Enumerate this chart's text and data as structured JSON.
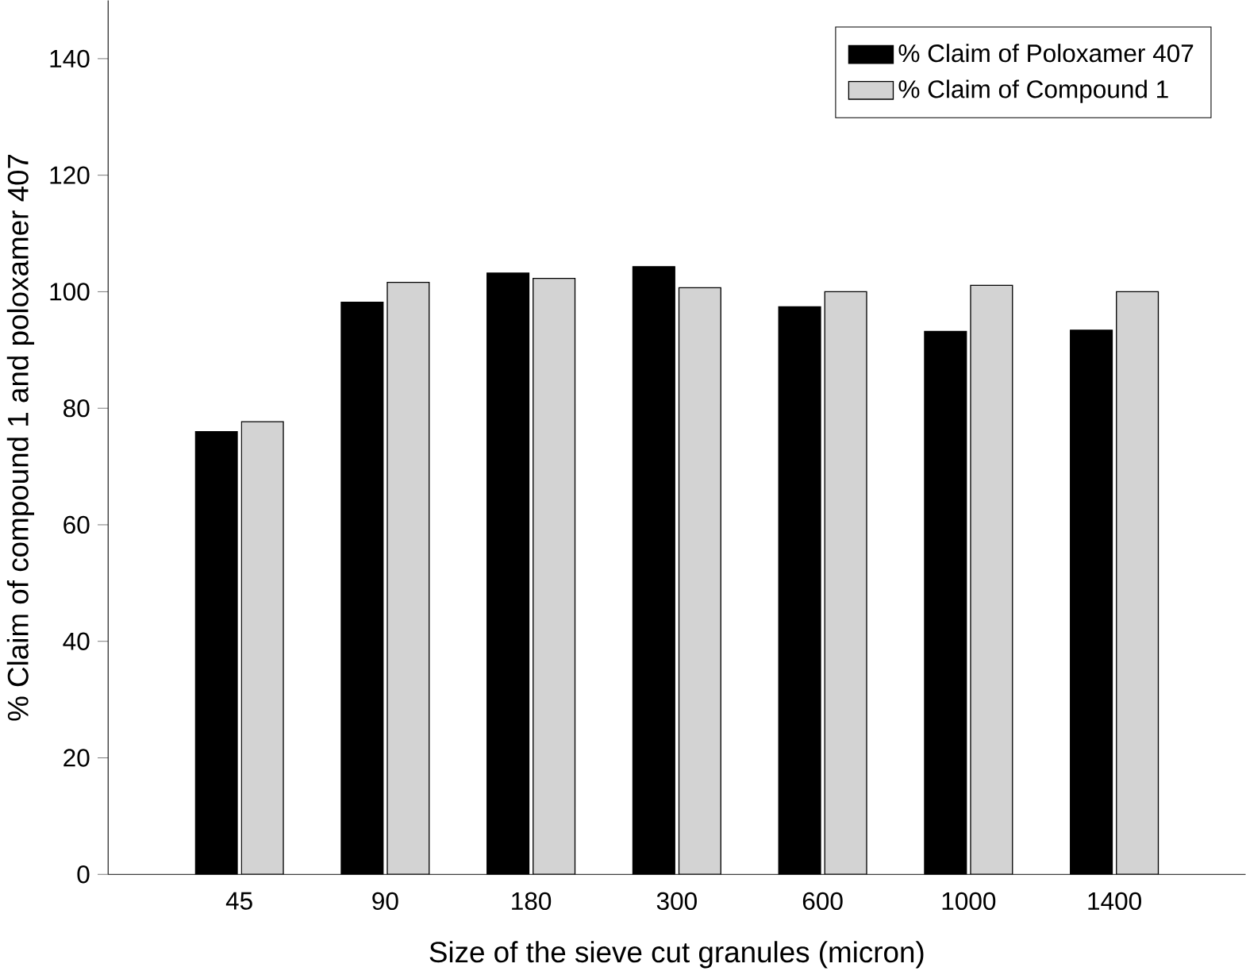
{
  "chart_data": {
    "type": "bar",
    "xlabel": "Size of the sieve cut granules (micron)",
    "ylabel": "% Claim of compound 1 and poloxamer 407",
    "categories": [
      "45",
      "90",
      "180",
      "300",
      "600",
      "1000",
      "1400"
    ],
    "series": [
      {
        "name": "% Claim of Poloxamer 407",
        "color": "#000000",
        "values": [
          76,
          98.2,
          103.2,
          104.3,
          97.4,
          93.2,
          93.4
        ]
      },
      {
        "name": "% Claim of Compound 1",
        "color": "#d3d3d3",
        "values": [
          77.7,
          101.6,
          102.3,
          100.7,
          100,
          101.1,
          100
        ]
      }
    ],
    "ylim": [
      0,
      150
    ],
    "yticks": [
      0,
      20,
      40,
      60,
      80,
      100,
      120,
      140
    ],
    "legend": "top right",
    "grid": false
  }
}
